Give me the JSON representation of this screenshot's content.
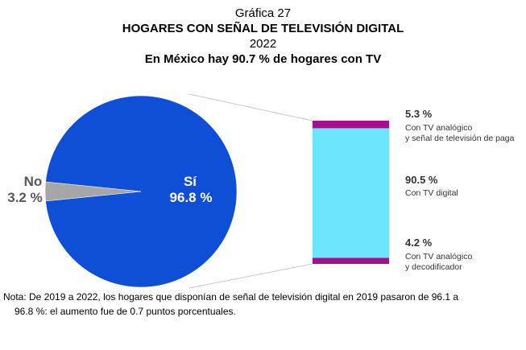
{
  "header": {
    "line1": "Gráfica 27",
    "line2": "HOGARES CON SEÑAL DE TELEVISIÓN DIGITAL",
    "line3": "2022",
    "line4": "En México hay 90.7 % de hogares con TV"
  },
  "chart_data": {
    "type": "pie",
    "pie": {
      "slices": [
        {
          "label": "Sí",
          "value_label": "96.8 %",
          "value": 96.8,
          "color": "#0f4ed6"
        },
        {
          "label": "No",
          "value_label": "3.2 %",
          "value": 3.2,
          "color": "#a6a6a6"
        }
      ]
    },
    "breakdown": {
      "type": "stacked-bar",
      "segments": [
        {
          "value": 5.3,
          "value_label": "5.3 %",
          "desc": [
            "Con TV analógico",
            "y señal de televisión de paga"
          ],
          "color": "#a50f8c"
        },
        {
          "value": 90.5,
          "value_label": "90.5 %",
          "desc": [
            "Con TV digital"
          ],
          "color": "#6ce4fa"
        },
        {
          "value": 4.2,
          "value_label": "4.2 %",
          "desc": [
            "Con TV analógico",
            "y decodificador"
          ],
          "color": "#a50f8c"
        }
      ]
    }
  },
  "note": {
    "line1": "Nota: De 2019 a 2022, los hogares que disponían de señal de televisión digital en 2019 pasaron de 96.1 a",
    "line2": "96.8 %: el aumento fue de 0.7 puntos porcentuales."
  }
}
